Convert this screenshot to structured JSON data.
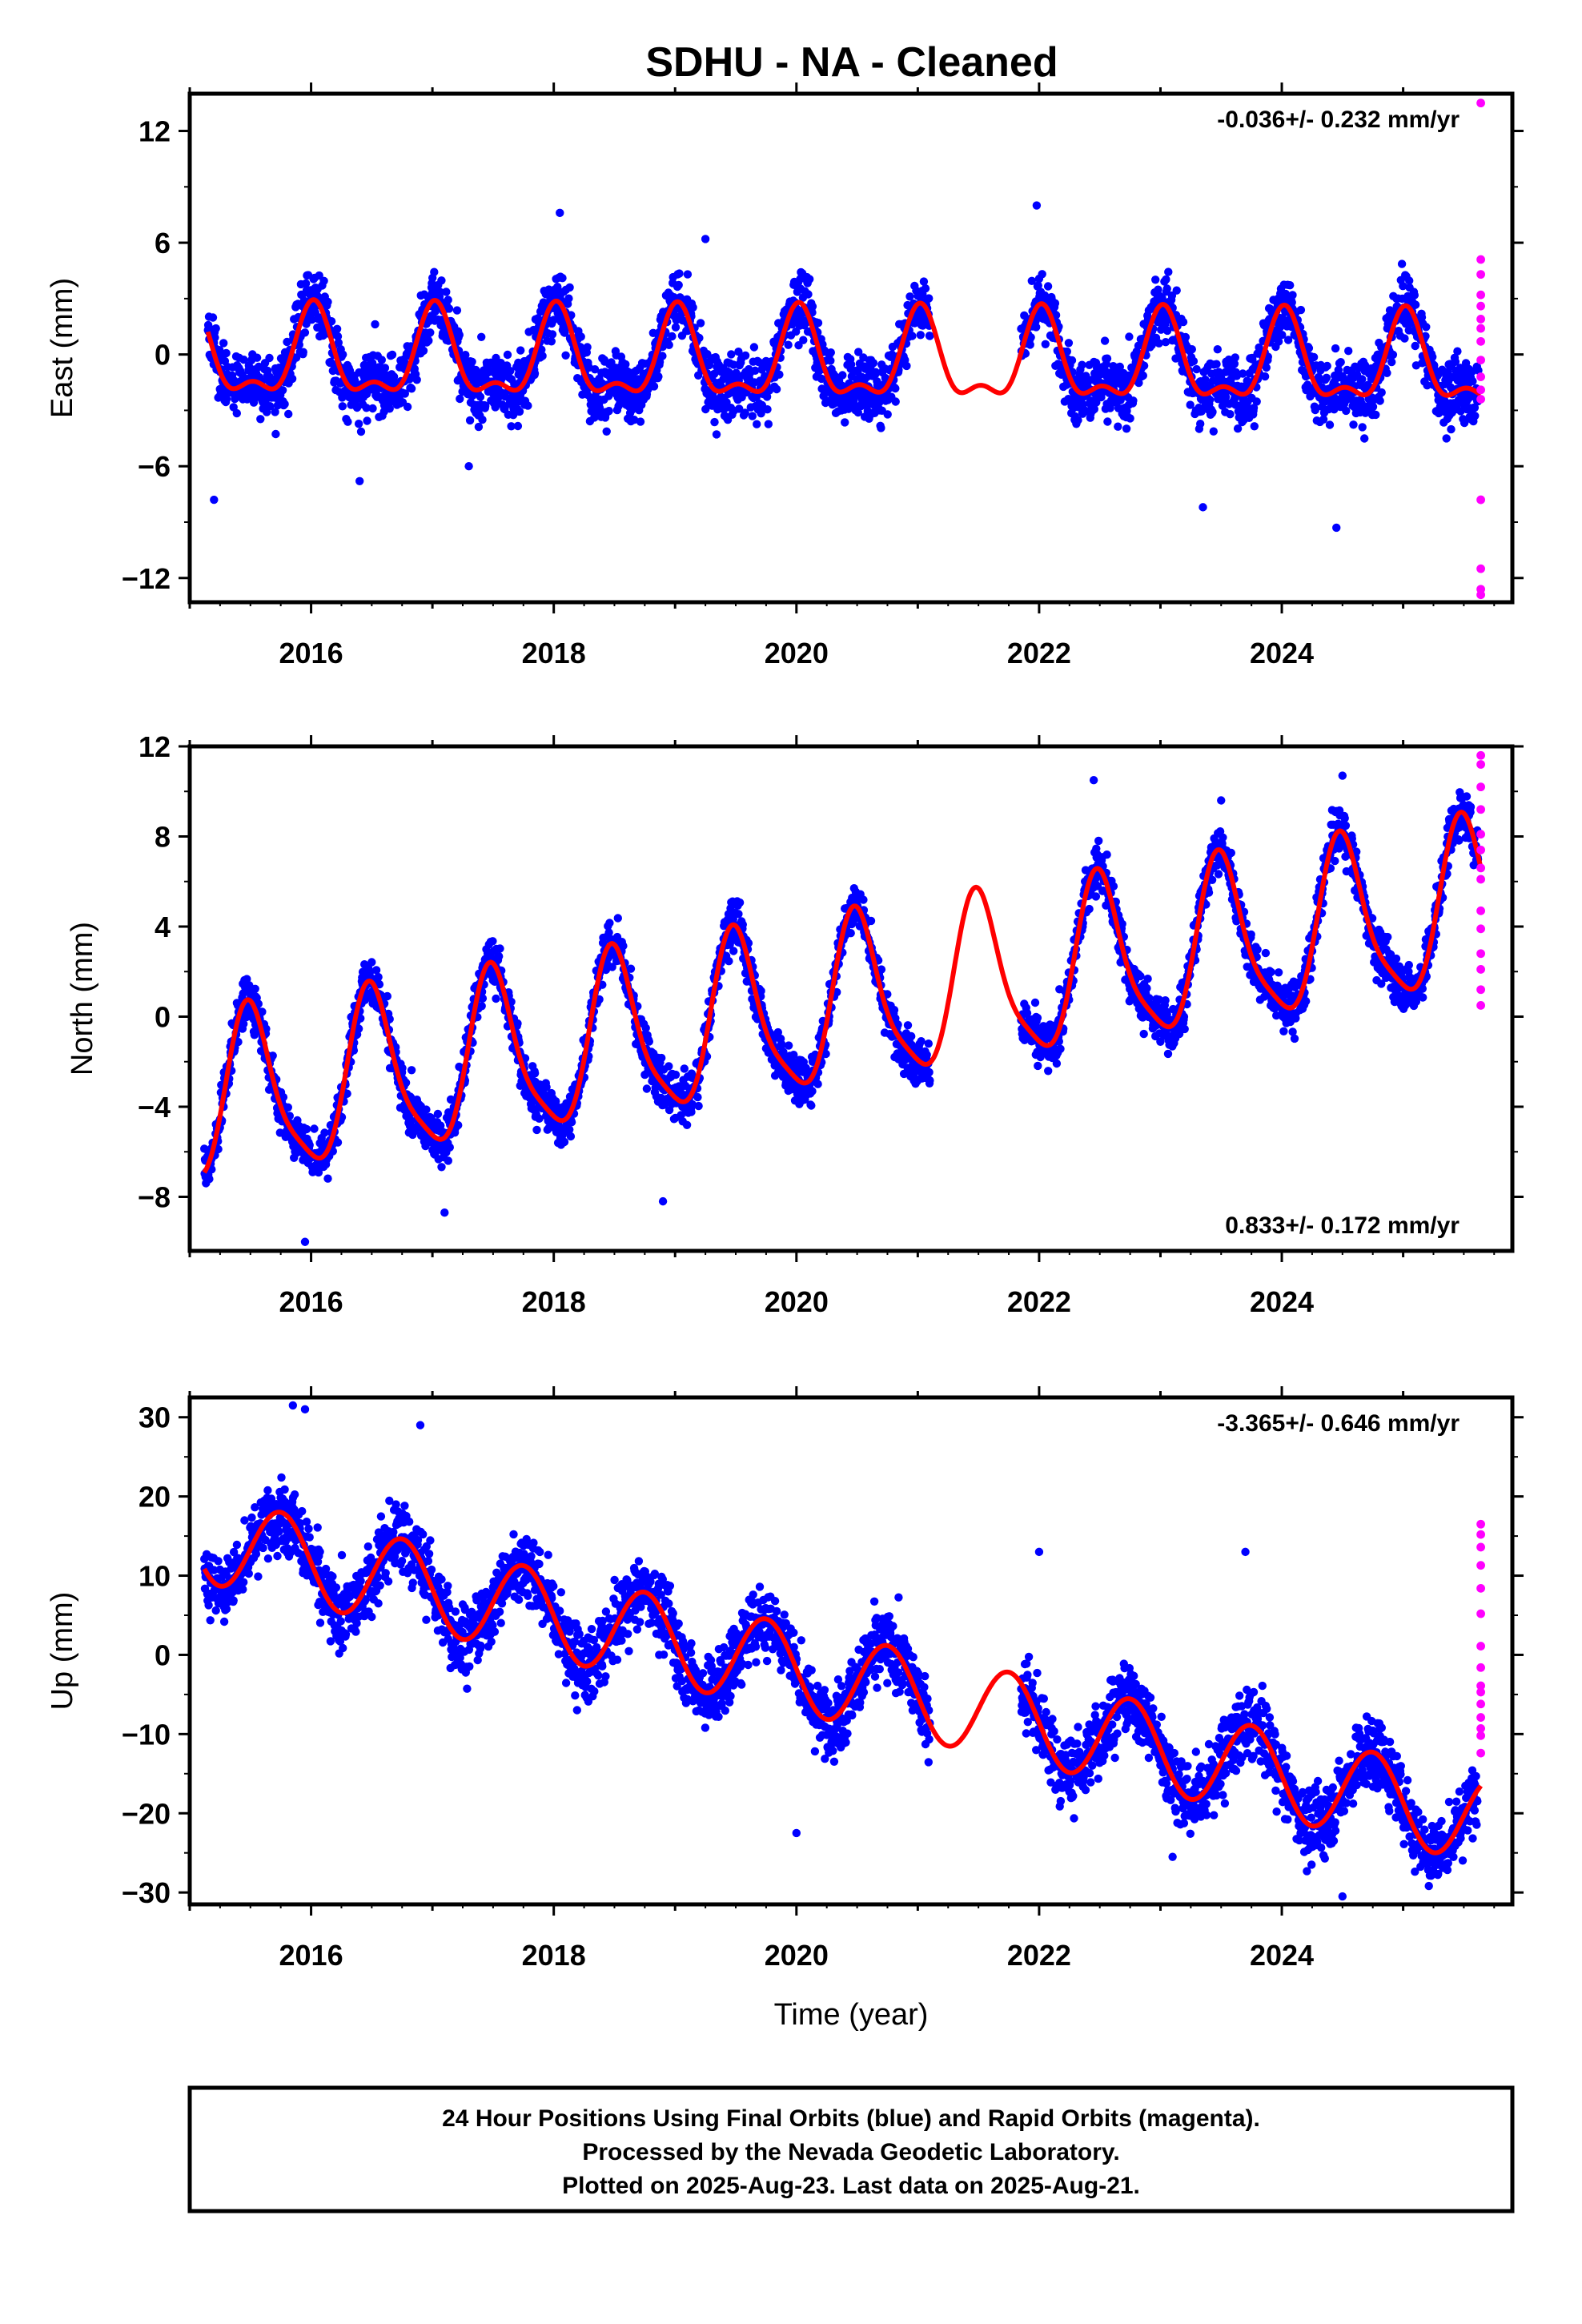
{
  "title": "SDHU  - NA - Cleaned",
  "colors": {
    "final_orbits": "#0000ff",
    "rapid_orbits": "#ff00ff",
    "model_fit": "#ff0000",
    "frame": "#000000"
  },
  "chart_data": [
    {
      "type": "scatter",
      "ylabel": "East (mm)",
      "xlim": [
        2015.0,
        2025.9
      ],
      "ylim": [
        -13.3,
        14.0
      ],
      "yticks": [
        12,
        6,
        0,
        -6,
        -12
      ],
      "xticks": [
        2016,
        2018,
        2020,
        2022,
        2024
      ],
      "rate_label": "-0.036+/- 0.232 mm/yr",
      "rate_position": "top-right",
      "model": {
        "offset": -0.4,
        "trend_mm_per_yr": -0.036,
        "ref_year": 2020,
        "annual_amp": 2.2,
        "annual_peak": 0.02,
        "semiannual_amp": 1.0,
        "semiannual_peak": 0.02
      },
      "data_window": [
        2015.15,
        2025.62
      ],
      "data_gap": [
        2021.1,
        2021.85
      ],
      "noise_mm": 1.6,
      "outliers": [
        {
          "x": 2018.05,
          "y": 7.6
        },
        {
          "x": 2021.98,
          "y": 8.0
        },
        {
          "x": 2019.25,
          "y": 6.2
        },
        {
          "x": 2017.3,
          "y": -6.0
        },
        {
          "x": 2015.2,
          "y": -7.8
        },
        {
          "x": 2024.45,
          "y": -9.3
        },
        {
          "x": 2023.35,
          "y": -8.2
        },
        {
          "x": 2016.4,
          "y": -6.8
        }
      ],
      "rapid_points": [
        {
          "x": 2025.64,
          "y": 13.5
        },
        {
          "x": 2025.64,
          "y": 5.1
        },
        {
          "x": 2025.64,
          "y": 4.3
        },
        {
          "x": 2025.64,
          "y": 3.2
        },
        {
          "x": 2025.64,
          "y": 2.6
        },
        {
          "x": 2025.64,
          "y": 1.9
        },
        {
          "x": 2025.64,
          "y": 1.4
        },
        {
          "x": 2025.64,
          "y": 0.7
        },
        {
          "x": 2025.64,
          "y": -0.3
        },
        {
          "x": 2025.64,
          "y": -1.2
        },
        {
          "x": 2025.64,
          "y": -1.9
        },
        {
          "x": 2025.64,
          "y": -2.4
        },
        {
          "x": 2025.64,
          "y": -7.8
        },
        {
          "x": 2025.64,
          "y": -11.5
        },
        {
          "x": 2025.64,
          "y": -12.6
        },
        {
          "x": 2025.64,
          "y": -12.9
        }
      ]
    },
    {
      "type": "scatter",
      "ylabel": "North (mm)",
      "xlim": [
        2015.0,
        2025.9
      ],
      "ylim": [
        -10.4,
        12.0
      ],
      "yticks": [
        12,
        8,
        4,
        0,
        -4,
        -8
      ],
      "xticks": [
        2016,
        2018,
        2020,
        2022,
        2024
      ],
      "rate_label": "0.833+/- 0.172 mm/yr",
      "rate_position": "bottom-right",
      "model": {
        "offset": 0.2,
        "trend_mm_per_yr": 0.833,
        "ref_year": 2020,
        "annual_amp": 3.6,
        "annual_peak": 0.5,
        "semiannual_amp": 0.8,
        "semiannual_peak": 0.45
      },
      "data_window": [
        2015.12,
        2025.62
      ],
      "data_gap": [
        2021.1,
        2021.85
      ],
      "noise_mm": 1.0,
      "outliers": [
        {
          "x": 2015.95,
          "y": -10.0
        },
        {
          "x": 2022.45,
          "y": 10.5
        },
        {
          "x": 2024.5,
          "y": 10.7
        },
        {
          "x": 2023.5,
          "y": 9.6
        },
        {
          "x": 2018.9,
          "y": -8.2
        },
        {
          "x": 2017.1,
          "y": -8.7
        }
      ],
      "rapid_points": [
        {
          "x": 2025.64,
          "y": 11.6
        },
        {
          "x": 2025.64,
          "y": 11.2
        },
        {
          "x": 2025.64,
          "y": 10.2
        },
        {
          "x": 2025.64,
          "y": 9.2
        },
        {
          "x": 2025.64,
          "y": 8.1
        },
        {
          "x": 2025.64,
          "y": 7.4
        },
        {
          "x": 2025.64,
          "y": 6.6
        },
        {
          "x": 2025.64,
          "y": 6.1
        },
        {
          "x": 2025.64,
          "y": 4.7
        },
        {
          "x": 2025.64,
          "y": 3.9
        },
        {
          "x": 2025.64,
          "y": 2.8
        },
        {
          "x": 2025.64,
          "y": 2.1
        },
        {
          "x": 2025.64,
          "y": 1.2
        },
        {
          "x": 2025.64,
          "y": 0.5
        }
      ]
    },
    {
      "type": "scatter",
      "ylabel": "Up (mm)",
      "xlabel": "Time (year)",
      "xlim": [
        2015.0,
        2025.9
      ],
      "ylim": [
        -31.5,
        32.5
      ],
      "yticks": [
        30,
        20,
        10,
        0,
        -10,
        -20,
        -30
      ],
      "xticks": [
        2016,
        2018,
        2020,
        2022,
        2024
      ],
      "rate_label": "-3.365+/- 0.646 mm/yr",
      "rate_position": "top-right",
      "model": {
        "offset": -1.8,
        "trend_mm_per_yr": -3.365,
        "ref_year": 2020,
        "annual_amp": 5.5,
        "annual_peak": 0.75,
        "semiannual_amp": 0.0,
        "semiannual_peak": 0.0
      },
      "data_window": [
        2015.12,
        2025.62
      ],
      "data_gap": [
        2021.1,
        2021.85
      ],
      "noise_mm": 4.2,
      "outliers": [
        {
          "x": 2015.85,
          "y": 31.5
        },
        {
          "x": 2015.95,
          "y": 31.0
        },
        {
          "x": 2016.9,
          "y": 29.0
        },
        {
          "x": 2020.0,
          "y": -22.5
        },
        {
          "x": 2024.5,
          "y": -30.5
        },
        {
          "x": 2023.1,
          "y": -25.5
        },
        {
          "x": 2025.25,
          "y": -24.5
        },
        {
          "x": 2022.0,
          "y": 13.0
        },
        {
          "x": 2023.7,
          "y": 13.0
        }
      ],
      "rapid_points": [
        {
          "x": 2025.64,
          "y": 16.5
        },
        {
          "x": 2025.64,
          "y": 15.2
        },
        {
          "x": 2025.64,
          "y": 13.6
        },
        {
          "x": 2025.64,
          "y": 11.3
        },
        {
          "x": 2025.64,
          "y": 8.4
        },
        {
          "x": 2025.64,
          "y": 5.2
        },
        {
          "x": 2025.64,
          "y": 1.1
        },
        {
          "x": 2025.64,
          "y": -1.6
        },
        {
          "x": 2025.64,
          "y": -3.9
        },
        {
          "x": 2025.64,
          "y": -4.7
        },
        {
          "x": 2025.64,
          "y": -6.2
        },
        {
          "x": 2025.64,
          "y": -7.9
        },
        {
          "x": 2025.64,
          "y": -9.3
        },
        {
          "x": 2025.64,
          "y": -10.2
        },
        {
          "x": 2025.64,
          "y": -12.4
        }
      ]
    }
  ],
  "footer": {
    "line1": "24 Hour Positions Using Final Orbits (blue) and Rapid Orbits (magenta).",
    "line2": "Processed by the Nevada Geodetic Laboratory.",
    "line3": "Plotted on 2025-Aug-23. Last data on 2025-Aug-21."
  }
}
